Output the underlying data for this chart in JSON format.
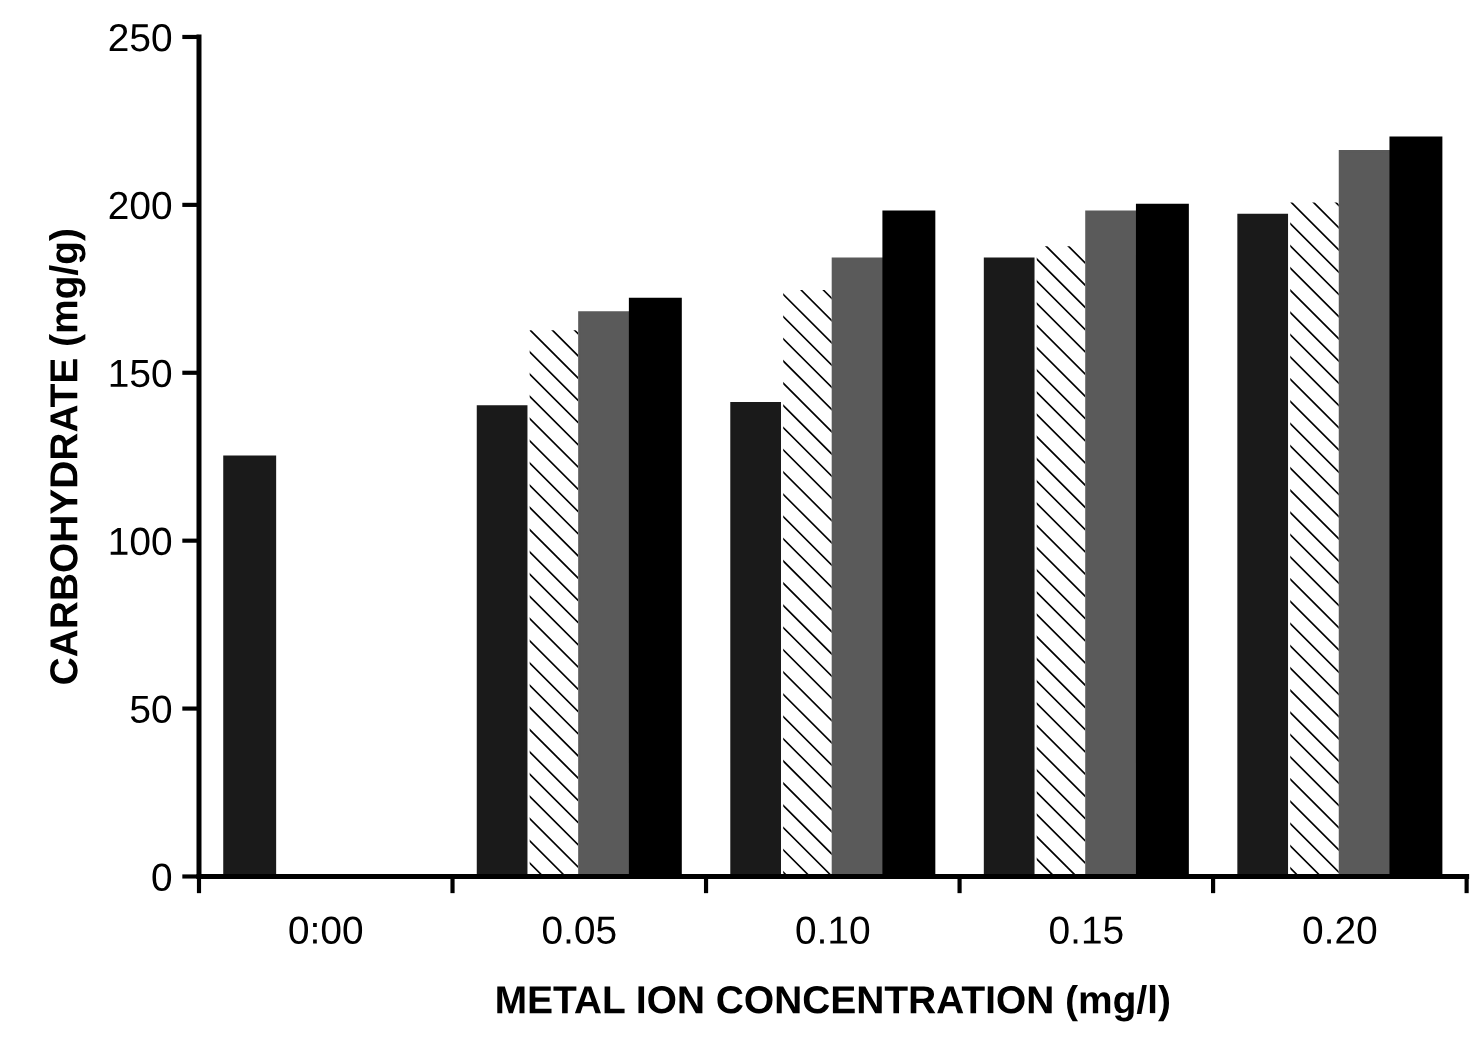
{
  "chart_data": {
    "type": "bar",
    "xlabel": "METAL ION CONCENTRATION (mg/l)",
    "ylabel": "CARBOHYDRATE (mg/g)",
    "categories": [
      "0:00",
      "0.05",
      "0.10",
      "0.15",
      "0.20"
    ],
    "series": [
      {
        "color": "#1a1a1a",
        "values": [
          125,
          140,
          141,
          184,
          197
        ]
      },
      {
        "color": "#ffffff",
        "values": [
          0,
          163,
          175,
          188,
          201
        ]
      },
      {
        "color": "#5a5a5a",
        "values": [
          0,
          168,
          184,
          198,
          216
        ]
      },
      {
        "color": "#000000",
        "values": [
          0,
          172,
          198,
          200,
          220
        ]
      }
    ],
    "ylim": [
      0,
      250
    ],
    "yticks": [
      0,
      50,
      100,
      150,
      200,
      250
    ],
    "grid": false,
    "legend": false
  }
}
